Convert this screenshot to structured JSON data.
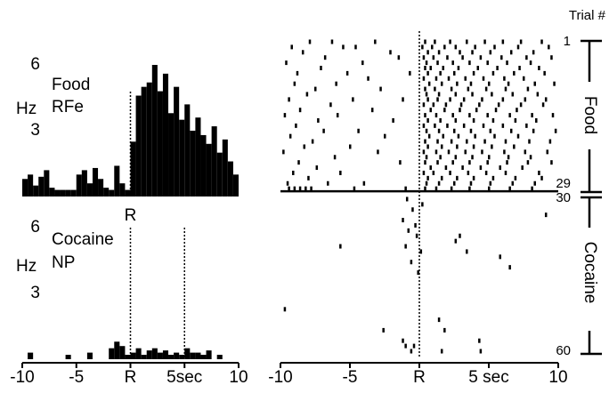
{
  "chart_data": [
    {
      "type": "histogram",
      "annotations": [
        "Food",
        "RFe"
      ],
      "y_label": "Hz",
      "color": "#000000",
      "bins": [
        -10,
        -9.5,
        -9,
        -8.5,
        -8,
        -7.5,
        -7,
        -6.5,
        -6,
        -5.5,
        -5,
        -4.5,
        -4,
        -3.5,
        -3,
        -2.5,
        -2,
        -1.5,
        -1,
        -0.5,
        0,
        0.5,
        1,
        1.5,
        2,
        2.5,
        3,
        3.5,
        4,
        4.5,
        5,
        5.5,
        6,
        6.5,
        7,
        7.5,
        8,
        8.5,
        9,
        9.5,
        10
      ],
      "values": [
        0.8,
        1.0,
        0.5,
        0.9,
        1.2,
        0.4,
        0.3,
        0.3,
        0.3,
        0.3,
        1.0,
        1.2,
        0.6,
        1.3,
        0.8,
        0.4,
        0.3,
        1.4,
        0.6,
        0.3,
        2.5,
        4.6,
        5.0,
        5.2,
        6.0,
        4.8,
        5.6,
        3.8,
        5.0,
        3.5,
        4.2,
        3.0,
        3.6,
        2.8,
        2.4,
        3.2,
        2.0,
        2.6,
        1.6,
        1.0
      ],
      "xlim": [
        -10,
        10
      ],
      "xticks": [
        {
          "value": 0,
          "label": "R"
        }
      ],
      "ylim": [
        0,
        6
      ],
      "yticks": [
        3,
        6
      ]
    },
    {
      "type": "histogram",
      "annotations": [
        "Cocaine",
        "NP"
      ],
      "y_label": "Hz",
      "color": "#000000",
      "bins": [
        -10,
        -9.5,
        -9,
        -8.5,
        -8,
        -7.5,
        -7,
        -6.5,
        -6,
        -5.5,
        -5,
        -4.5,
        -4,
        -3.5,
        -3,
        -2.5,
        -2,
        -1.5,
        -1,
        -0.5,
        0,
        0.5,
        1,
        1.5,
        2,
        2.5,
        3,
        3.5,
        4,
        4.5,
        5,
        5.5,
        6,
        6.5,
        7,
        7.5,
        8,
        8.5,
        9,
        9.5,
        10
      ],
      "values": [
        0,
        0.3,
        0,
        0,
        0,
        0,
        0,
        0,
        0.2,
        0,
        0,
        0,
        0.3,
        0,
        0,
        0,
        0.5,
        0.8,
        0.6,
        0.2,
        0.3,
        0.5,
        0.2,
        0.4,
        0.5,
        0.3,
        0.4,
        0.2,
        0.3,
        0.2,
        0.5,
        0.3,
        0.3,
        0.2,
        0.4,
        0,
        0.2,
        0,
        0,
        0
      ],
      "xlim": [
        -10,
        10
      ],
      "xticks": [
        -10,
        -5,
        {
          "value": 0,
          "label": "R"
        },
        {
          "value": 5,
          "label": "5sec"
        },
        10
      ],
      "ylim": [
        0,
        6
      ],
      "yticks": [
        3,
        6
      ]
    },
    {
      "type": "raster",
      "y_label": "Trial #",
      "color": "#000000",
      "series": [
        {
          "name": "Food",
          "values": [
            [
              -7.9,
              -6.3,
              -3.2,
              0.4,
              1.1,
              2.2,
              3.4,
              4.7,
              6.0,
              7.3,
              8.8
            ],
            [
              -9.2,
              -5.5,
              -4.6,
              0.2,
              0.9,
              1.8,
              2.6,
              4.0,
              5.4,
              7.1,
              9.3
            ],
            [
              -8.4,
              -2.1,
              0.6,
              1.4,
              2.9,
              3.8,
              5.1,
              6.6,
              8.2
            ],
            [
              -6.8,
              -1.5,
              0.3,
              1.0,
              2.0,
              3.1,
              4.4,
              5.9,
              7.7,
              9.5
            ],
            [
              -9.6,
              -4.1,
              0.5,
              1.3,
              2.4,
              3.6,
              4.9,
              6.3,
              8.0
            ],
            [
              -7.1,
              0.4,
              0.8,
              1.7,
              2.8,
              4.2,
              5.6,
              7.2,
              8.6
            ],
            [
              -8.8,
              -5.2,
              -0.7,
              0.6,
              1.5,
              2.5,
              3.9,
              5.3,
              6.8,
              9.0
            ],
            [
              -3.7,
              0.3,
              1.2,
              2.1,
              3.3,
              4.6,
              6.1,
              7.5
            ],
            [
              -9.0,
              -6.0,
              0.7,
              1.6,
              2.7,
              3.7,
              5.0,
              6.4,
              8.3,
              9.7
            ],
            [
              -7.5,
              -2.8,
              0.4,
              1.1,
              2.3,
              3.5,
              4.8,
              6.2,
              7.8
            ],
            [
              -8.1,
              0.5,
              1.4,
              2.6,
              3.8,
              5.2,
              6.7,
              8.5
            ],
            [
              -9.4,
              -4.8,
              -1.2,
              0.6,
              1.3,
              2.2,
              3.2,
              4.5,
              6.0,
              7.6,
              9.1
            ],
            [
              -6.4,
              0.3,
              1.0,
              1.9,
              3.0,
              4.3,
              5.7,
              7.3,
              8.9
            ],
            [
              -8.6,
              -3.4,
              0.8,
              1.8,
              2.9,
              4.1,
              5.5,
              7.0
            ],
            [
              -9.7,
              -5.9,
              0.4,
              1.2,
              2.4,
              3.6,
              4.9,
              6.5,
              8.1,
              9.6
            ],
            [
              -7.3,
              -1.9,
              0.6,
              1.5,
              2.6,
              3.9,
              5.3,
              6.9,
              8.4
            ],
            [
              -8.9,
              0.3,
              1.1,
              2.0,
              3.2,
              4.6,
              6.0,
              7.7
            ],
            [
              -6.9,
              -4.4,
              0.5,
              1.4,
              2.5,
              3.7,
              5.1,
              6.6,
              8.2,
              9.8
            ],
            [
              -9.3,
              -2.5,
              0.7,
              1.7,
              2.8,
              4.0,
              5.4,
              7.1
            ],
            [
              -7.7,
              0.4,
              1.3,
              2.3,
              3.4,
              4.7,
              6.2,
              7.9,
              9.4
            ],
            [
              -8.3,
              -5.0,
              0.6,
              1.6,
              2.7,
              3.9,
              5.2,
              6.8
            ],
            [
              -9.8,
              -3.0,
              0.3,
              1.2,
              2.1,
              3.3,
              4.5,
              6.1,
              7.6,
              9.2
            ],
            [
              -6.1,
              0.5,
              1.5,
              2.6,
              3.8,
              5.0,
              6.4,
              8.0
            ],
            [
              -8.7,
              -1.4,
              0.4,
              1.3,
              2.4,
              3.6,
              4.9,
              6.3,
              7.8,
              9.5
            ],
            [
              -7.4,
              0.8,
              1.9,
              3.1,
              4.4,
              5.8,
              7.4
            ],
            [
              -9.1,
              -5.7,
              0.3,
              1.0,
              2.2,
              3.5,
              4.8,
              6.2,
              8.6
            ],
            [
              -8.0,
              0.6,
              1.6,
              2.7,
              3.9,
              5.3,
              6.9,
              8.8
            ],
            [
              -9.5,
              -6.6,
              -4.0,
              0.5,
              1.4,
              2.5,
              3.7,
              5.1,
              6.7,
              8.3
            ],
            [
              -9.4,
              -9.0,
              -8.6,
              -8.2,
              -7.8,
              -4.7,
              -1.0,
              0.4,
              1.2,
              2.3,
              3.6,
              5.0,
              6.5,
              8.1
            ]
          ]
        },
        {
          "name": "Cocaine",
          "values": [
            [],
            [
              -0.9
            ],
            [
              0.2
            ],
            [
              -0.5
            ],
            [
              9.1
            ],
            [
              -1.2
            ],
            [
              -0.3
            ],
            [
              -0.8
            ],
            [
              2.9,
              -0.2
            ],
            [
              2.6
            ],
            [
              -5.7,
              -1.0
            ],
            [
              3.4,
              0.1
            ],
            [
              5.8
            ],
            [
              -0.6
            ],
            [
              6.5
            ],
            [
              -0.1
            ],
            [],
            [],
            [],
            [],
            [],
            [],
            [
              -9.7
            ],
            [],
            [
              1.4
            ],
            [],
            [
              -2.6,
              1.8
            ],
            [],
            [
              -1.2,
              4.3
            ],
            [
              -1.0,
              -0.4
            ],
            [
              -0.6,
              1.6,
              4.4
            ]
          ]
        }
      ],
      "xlim": [
        -10,
        10
      ],
      "xticks": [
        -10,
        -5,
        {
          "value": 0,
          "label": "R"
        },
        {
          "value": 5,
          "label": "5 sec"
        },
        10
      ],
      "ylim": [
        1,
        60
      ],
      "yticks": [
        1,
        29,
        30,
        60
      ]
    }
  ]
}
